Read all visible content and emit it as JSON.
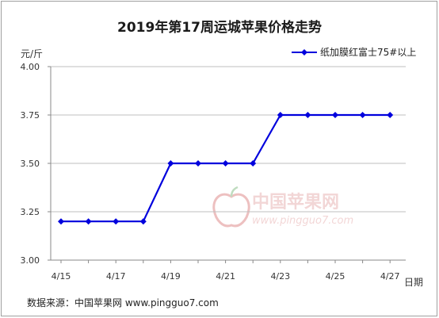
{
  "chart_data": {
    "type": "line",
    "title": "2019年第17周运城苹果价格走势",
    "ylabel": "元/斤",
    "xlabel": "日期",
    "ylim": [
      3.0,
      4.0
    ],
    "y_ticks": [
      "3.00",
      "3.25",
      "3.50",
      "3.75",
      "4.00"
    ],
    "y_tick_values": [
      3.0,
      3.25,
      3.5,
      3.75,
      4.0
    ],
    "x_tick_labels": [
      "4/15",
      "4/17",
      "4/19",
      "4/21",
      "4/23",
      "4/25",
      "4/27"
    ],
    "x": [
      "4/15",
      "4/16",
      "4/17",
      "4/18",
      "4/19",
      "4/20",
      "4/21",
      "4/22",
      "4/23",
      "4/24",
      "4/25",
      "4/26",
      "4/27"
    ],
    "series": [
      {
        "name": "纸加膜红富士75#以上",
        "values": [
          3.2,
          3.2,
          3.2,
          3.2,
          3.5,
          3.5,
          3.5,
          3.5,
          3.75,
          3.75,
          3.75,
          3.75,
          3.75
        ]
      }
    ],
    "grid": true,
    "legend": "top-right"
  },
  "colors": {
    "series": "#0000dd",
    "grid": "#bfbfbf",
    "axis": "#888888"
  },
  "source": "数据来源：中国苹果网 www.pingguo7.com",
  "watermark": {
    "name": "中国苹果网",
    "url": "www.pingguo7.com",
    "icon": "apple-logo-icon"
  }
}
